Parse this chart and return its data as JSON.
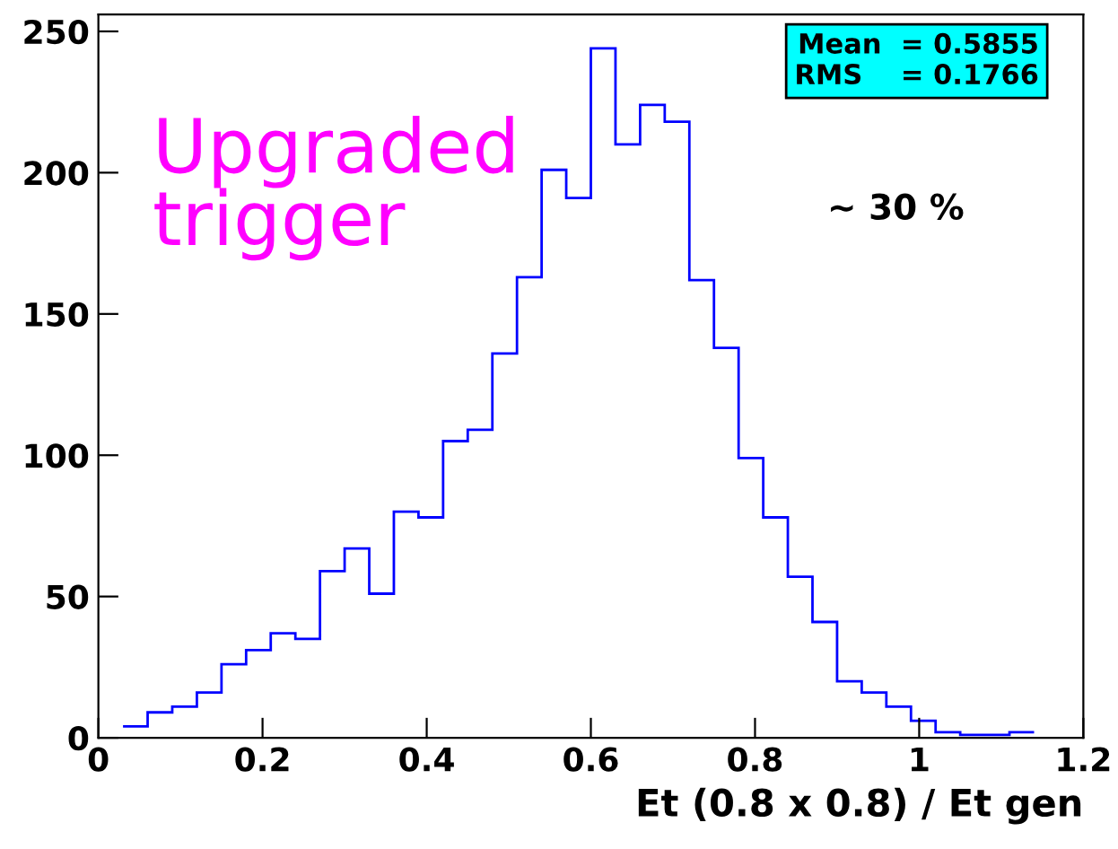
{
  "chart_data": {
    "type": "histogram",
    "xlabel": "Et (0.8 x 0.8) / Et gen",
    "bins": [
      0.03,
      0.06,
      0.09,
      0.12,
      0.15,
      0.18,
      0.21,
      0.24,
      0.27,
      0.3,
      0.33,
      0.36,
      0.39,
      0.42,
      0.45,
      0.48,
      0.51,
      0.54,
      0.57,
      0.6,
      0.63,
      0.66,
      0.69,
      0.72,
      0.75,
      0.78,
      0.81,
      0.84,
      0.87,
      0.9,
      0.93,
      0.96,
      0.99,
      1.02,
      1.05,
      1.08,
      1.11,
      1.14
    ],
    "values": [
      4,
      9,
      11,
      16,
      26,
      31,
      37,
      35,
      59,
      67,
      51,
      80,
      78,
      105,
      109,
      136,
      163,
      201,
      191,
      244,
      210,
      224,
      218,
      162,
      138,
      99,
      78,
      57,
      41,
      20,
      16,
      11,
      6,
      2,
      1,
      1,
      2
    ],
    "color": "#0000ff",
    "xlim": [
      0,
      1.2
    ],
    "ylim": [
      0,
      256
    ],
    "xticks": [
      0,
      0.2,
      0.4,
      0.6,
      0.8,
      1,
      1.2
    ],
    "yticks": [
      0,
      50,
      100,
      150,
      200,
      250
    ],
    "grid": false,
    "annotations": [
      "Mean  = 0.5855\nRMS    = 0.1766",
      "Upgraded\ntrigger",
      "~ 30 %"
    ]
  }
}
